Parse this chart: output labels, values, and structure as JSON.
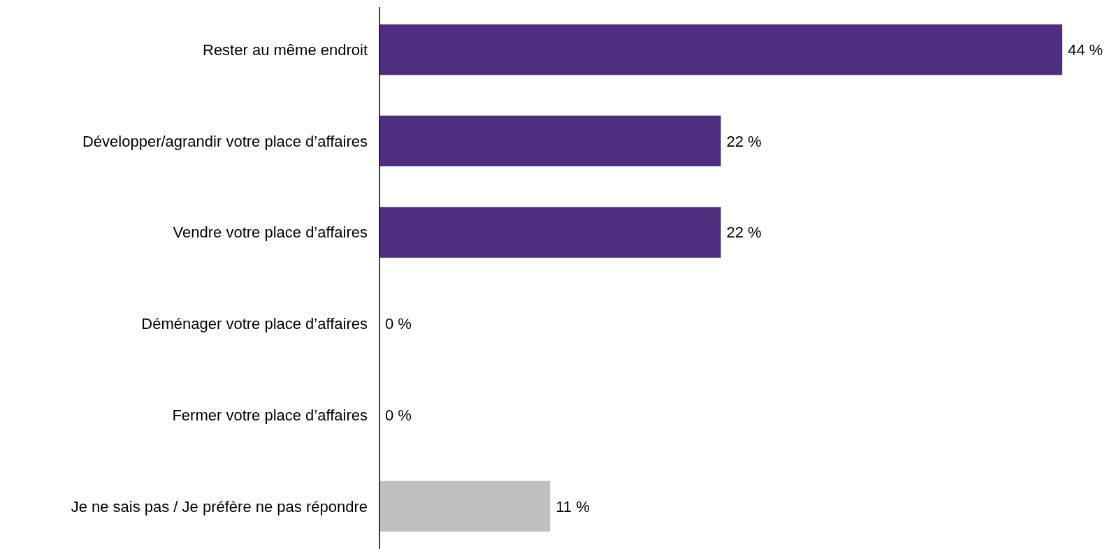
{
  "chart_data": {
    "type": "bar",
    "orientation": "horizontal",
    "categories": [
      "Rester au même endroit",
      "Développer/agrandir votre place d’affaires",
      "Vendre votre place d’affaires",
      "Déménager votre place d’affaires",
      "Fermer votre place d’affaires",
      "Je ne sais pas / Je préfère ne pas répondre"
    ],
    "values": [
      44,
      22,
      22,
      0,
      0,
      11
    ],
    "colors": [
      "#4f2d7f",
      "#4f2d7f",
      "#4f2d7f",
      "#4f2d7f",
      "#4f2d7f",
      "#bfbfbf"
    ],
    "value_labels": [
      "44 %",
      "22 %",
      "22 %",
      "0 %",
      "0 %",
      "11 %"
    ]
  }
}
